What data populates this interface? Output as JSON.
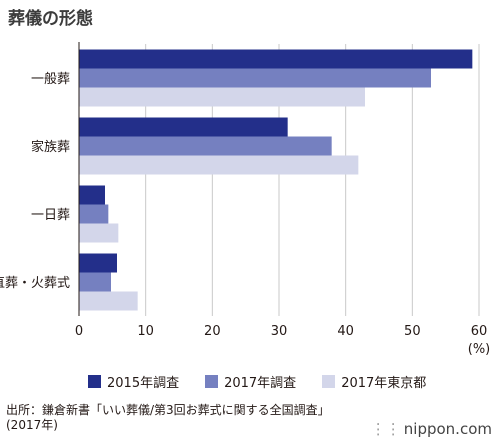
{
  "title": "葬儀の形態",
  "chart_data": {
    "type": "bar",
    "orientation": "horizontal",
    "categories": [
      "一般葬",
      "家族葬",
      "一日葬",
      "直葬・火葬式"
    ],
    "series": [
      {
        "name": "2015年調査",
        "values": [
          59,
          31.3,
          3.9,
          5.7
        ],
        "color": "#232f8a"
      },
      {
        "name": "2017年調査",
        "values": [
          52.8,
          37.9,
          4.4,
          4.8
        ],
        "color": "#7580c0"
      },
      {
        "name": "2017年東京都",
        "values": [
          42.9,
          41.9,
          5.9,
          8.8
        ],
        "color": "#d3d6ea"
      }
    ],
    "xlim": [
      0,
      60
    ],
    "xticks": [
      0,
      10,
      20,
      30,
      40,
      50,
      60
    ],
    "tick_labels": [
      "0",
      "10",
      "20",
      "30",
      "40",
      "50",
      "60"
    ],
    "unit": "(%)",
    "grid": true,
    "legend": "bottom"
  },
  "source": {
    "line1": "出所：鎌倉新書「いい葬儀/第3回お葬式に関する全国調査」",
    "line2": "(2017年)"
  },
  "brand": "nippon.com",
  "brand_mark": "⋮⋮"
}
